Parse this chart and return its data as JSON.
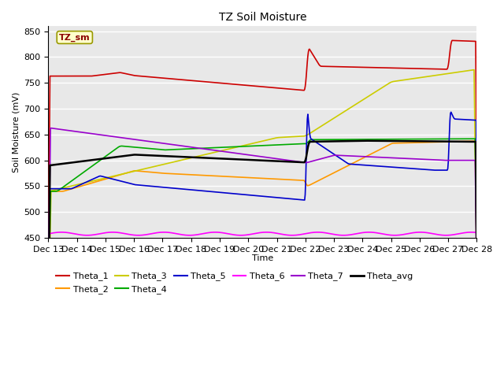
{
  "title": "TZ Soil Moisture",
  "xlabel": "Time",
  "ylabel": "Soil Moisture (mV)",
  "ylim": [
    450,
    860
  ],
  "yticks": [
    450,
    500,
    550,
    600,
    650,
    700,
    750,
    800,
    850
  ],
  "xtick_labels": [
    "Dec 13",
    "Dec 14",
    "Dec 15",
    "Dec 16",
    "Dec 17",
    "Dec 18",
    "Dec 19",
    "Dec 20",
    "Dec 21",
    "Dec 22",
    "Dec 23",
    "Dec 24",
    "Dec 25",
    "Dec 26",
    "Dec 27",
    "Dec 28"
  ],
  "legend_label": "TZ_sm",
  "series_colors": {
    "Theta_1": "#cc0000",
    "Theta_2": "#ff9900",
    "Theta_3": "#cccc00",
    "Theta_4": "#00aa00",
    "Theta_5": "#0000cc",
    "Theta_6": "#ff00ff",
    "Theta_7": "#9900cc",
    "Theta_avg": "#000000"
  },
  "bg_color": "#e8e8e8",
  "fig_bg_color": "#ffffff",
  "grid_color": "#ffffff"
}
